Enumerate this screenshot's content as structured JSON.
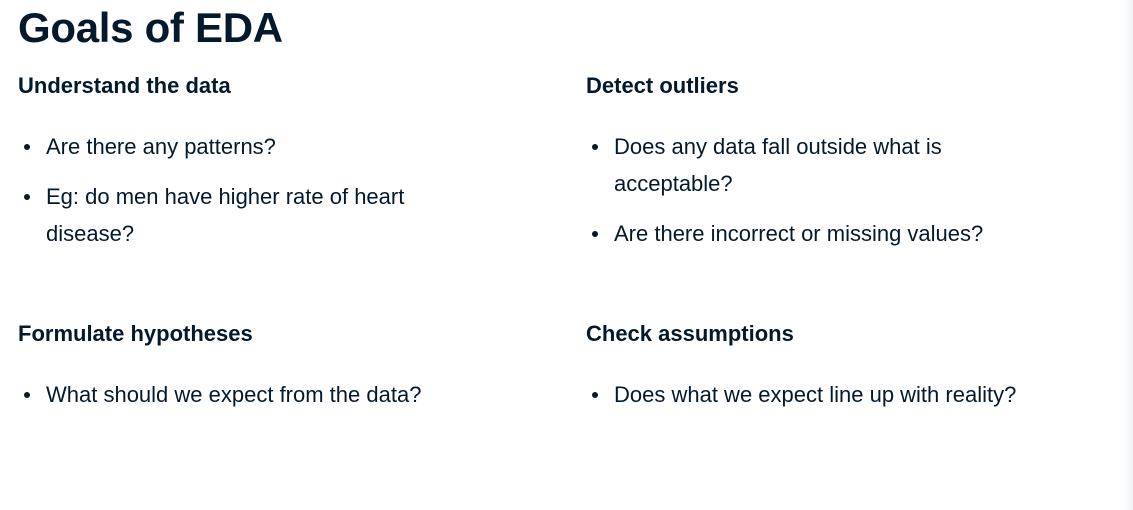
{
  "slide": {
    "title": "Goals of EDA",
    "sections": [
      {
        "heading": "Understand the data",
        "bullets": [
          "Are there any patterns?",
          "Eg: do men have higher rate of heart disease?"
        ]
      },
      {
        "heading": "Detect outliers",
        "bullets": [
          "Does any data fall outside what is acceptable?",
          "Are there incorrect or missing values?"
        ]
      },
      {
        "heading": "Formulate hypotheses",
        "bullets": [
          "What should we expect from the data?"
        ]
      },
      {
        "heading": "Check assumptions",
        "bullets": [
          "Does what we expect line up with reality?"
        ]
      }
    ]
  }
}
